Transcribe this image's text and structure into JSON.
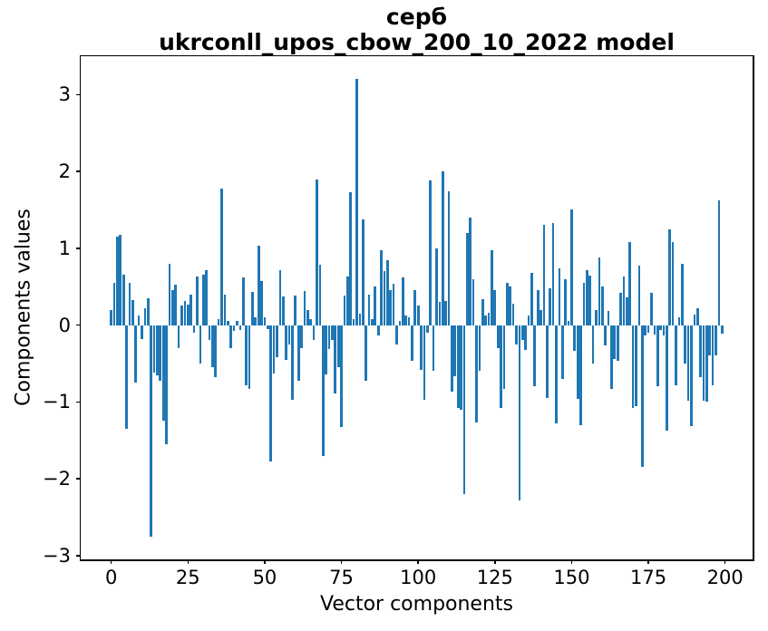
{
  "figure": {
    "title_line1": "серб",
    "title_line2": "ukrconll_upos_cbow_200_10_2022 model"
  },
  "chart_data": {
    "type": "bar",
    "title": "серб — ukrconll_upos_cbow_200_10_2022 model",
    "xlabel": "Vector components",
    "ylabel": "Components values",
    "bar_color": "#1f77b4",
    "grid": false,
    "legend": null,
    "xlim": [
      -9.95,
      208.95
    ],
    "ylim": [
      -3.05,
      3.5
    ],
    "xticks": [
      0,
      25,
      50,
      75,
      100,
      125,
      150,
      175,
      200
    ],
    "xtick_labels": [
      "0",
      "25",
      "50",
      "75",
      "100",
      "125",
      "150",
      "175",
      "200"
    ],
    "yticks": [
      3,
      2,
      1,
      0,
      -1,
      -2,
      -3
    ],
    "ytick_labels": [
      "3",
      "2",
      "1",
      "0",
      "−1",
      "−2",
      "−3"
    ],
    "x_is_index": true,
    "n_bars": 200,
    "values": [
      0.2,
      0.55,
      1.15,
      1.18,
      0.66,
      -1.35,
      0.55,
      0.33,
      -0.75,
      0.12,
      -0.18,
      0.22,
      0.35,
      -2.75,
      -0.62,
      -0.65,
      -0.72,
      -1.25,
      -1.55,
      0.8,
      0.45,
      0.53,
      -0.3,
      0.25,
      0.31,
      0.27,
      0.4,
      -0.1,
      0.63,
      -0.5,
      0.66,
      0.72,
      -0.2,
      -0.55,
      -0.68,
      0.08,
      1.78,
      0.4,
      0.05,
      -0.3,
      -0.08,
      0.05,
      -0.06,
      0.62,
      -0.78,
      -0.83,
      0.43,
      0.1,
      1.03,
      0.57,
      0.1,
      -0.05,
      -1.78,
      -0.63,
      -0.42,
      0.72,
      0.37,
      -0.45,
      -0.25,
      -0.97,
      0.38,
      -0.73,
      -0.3,
      0.44,
      0.2,
      0.08,
      -0.2,
      1.89,
      0.79,
      -1.7,
      -0.64,
      -0.31,
      -0.2,
      -0.89,
      -0.55,
      -1.33,
      0.38,
      0.63,
      1.73,
      0.08,
      3.2,
      0.15,
      1.38,
      -0.73,
      0.4,
      0.08,
      0.5,
      -0.14,
      0.97,
      0.7,
      0.84,
      0.45,
      0.54,
      -0.25,
      0.05,
      0.62,
      0.12,
      0.1,
      -0.46,
      0.46,
      0.25,
      -0.58,
      -0.97,
      -0.1,
      1.88,
      -0.6,
      1.0,
      0.3,
      2.0,
      0.31,
      1.74,
      -0.87,
      -0.67,
      -1.08,
      -1.1,
      -2.2,
      1.2,
      1.4,
      0.6,
      -1.27,
      -0.59,
      0.34,
      0.12,
      0.16,
      0.97,
      0.46,
      -0.3,
      -1.08,
      -0.83,
      0.55,
      0.5,
      0.28,
      -0.25,
      -2.28,
      -0.2,
      -0.32,
      0.12,
      0.68,
      -0.8,
      0.46,
      0.2,
      1.3,
      -0.95,
      0.48,
      1.33,
      -1.28,
      0.74,
      -0.7,
      0.6,
      0.05,
      1.5,
      -0.33,
      -0.96,
      -1.3,
      0.55,
      0.72,
      0.64,
      -0.5,
      0.2,
      0.88,
      0.5,
      -0.26,
      0.18,
      -0.83,
      -0.44,
      -0.46,
      0.42,
      0.63,
      0.36,
      1.08,
      -1.08,
      -1.06,
      0.77,
      -1.85,
      -0.13,
      -0.1,
      0.42,
      -0.12,
      -0.8,
      -0.06,
      -0.14,
      -1.37,
      1.25,
      1.08,
      -0.79,
      0.1,
      0.8,
      -0.5,
      -0.98,
      -1.31,
      0.14,
      0.22,
      -0.68,
      -0.98,
      -1.0,
      -0.4,
      -0.79,
      -0.4,
      1.62,
      -0.11
    ]
  }
}
